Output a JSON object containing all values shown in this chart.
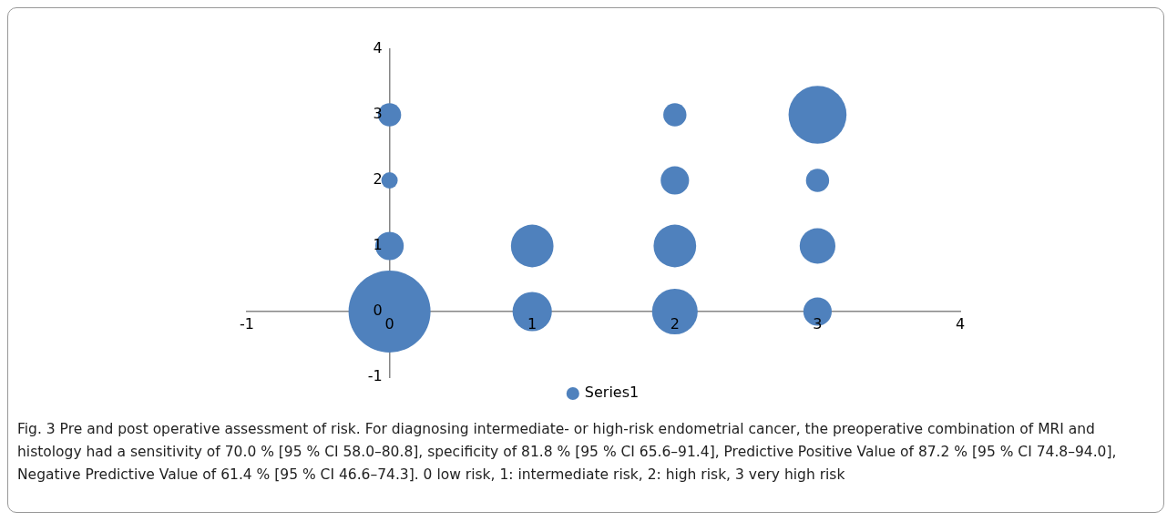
{
  "chart_data": {
    "type": "bubble",
    "legend": "bottom",
    "grid": false,
    "marker": "circle",
    "xlim": [
      -1,
      4
    ],
    "xticks": [
      -1,
      0,
      1,
      2,
      3,
      4
    ],
    "ylim": [
      -1,
      4
    ],
    "yticks": [
      -1,
      0,
      1,
      2,
      3,
      4
    ],
    "series": [
      {
        "name": "Series1",
        "color": "#4f81bd",
        "x": [
          0,
          0,
          0,
          0,
          1,
          1,
          2,
          2,
          2,
          2,
          3,
          3,
          3,
          3
        ],
        "values": [
          0,
          1,
          2,
          3,
          0,
          1,
          0,
          1,
          2,
          3,
          0,
          1,
          2,
          3
        ],
        "sizes": [
          1,
          0.12,
          0.04,
          0.08,
          0.23,
          0.27,
          0.31,
          0.27,
          0.12,
          0.08,
          0.12,
          0.19,
          0.08,
          0.5
        ]
      }
    ],
    "annotations": [
      "Fig. 3 Pre and post operative assessment of risk. For diagnosing intermediate- or high-risk endometrial cancer, the preoperative combination of MRI and histology had a sensitivity of 70.0 % [95 % CI 58.0–80.8], specificity of 81.8 % [95 % CI 65.6–91.4], Predictive Positive Value of 87.2 % [95 % CI 74.8–94.0], Negative Predictive Value of 61.4 % [95 % CI 46.6–74.3]. 0 low risk, 1: intermediate risk, 2: high risk, 3 very high risk"
    ]
  }
}
